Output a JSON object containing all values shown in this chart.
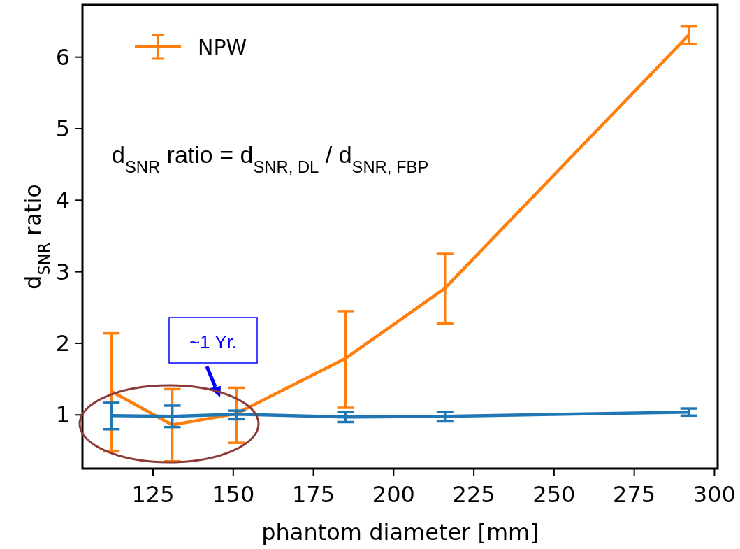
{
  "chart_data": {
    "type": "line",
    "xlabel": "phantom diameter [mm]",
    "ylabel": "d$_{SNR}$ ratio",
    "x": [
      112,
      131,
      151,
      185,
      216,
      292
    ],
    "series": [
      {
        "color": "#1f77b4",
        "values": [
          0.99,
          0.98,
          1.01,
          0.97,
          0.98,
          1.04
        ],
        "errors": [
          [
            0.8,
            1.17
          ],
          [
            0.83,
            1.13
          ],
          [
            0.94,
            1.06
          ],
          [
            0.9,
            1.04
          ],
          [
            0.91,
            1.04
          ],
          [
            0.99,
            1.09
          ]
        ]
      },
      {
        "name": "NPW",
        "color": "#ff7f0e",
        "values": [
          1.33,
          0.86,
          1.02,
          1.79,
          2.77,
          6.31
        ],
        "errors": [
          [
            0.49,
            2.14
          ],
          [
            0.35,
            1.36
          ],
          [
            0.61,
            1.38
          ],
          [
            1.1,
            2.45
          ],
          [
            2.28,
            3.25
          ],
          [
            6.18,
            6.43
          ]
        ]
      }
    ],
    "xlim": [
      103,
      301
    ],
    "xticks": [
      125,
      150,
      175,
      200,
      225,
      250,
      275,
      300
    ],
    "ylim": [
      0.25,
      6.73
    ],
    "yticks": [
      1,
      2,
      3,
      4,
      5,
      6
    ],
    "grid": false,
    "legend": "top left",
    "marker": "none",
    "line_style": "solid",
    "annotations": [
      "d$_{SNR}$ ratio =  d$_{SNR, DL}$ / d$_{SNR, FBP}$",
      "~1 Yr."
    ]
  }
}
